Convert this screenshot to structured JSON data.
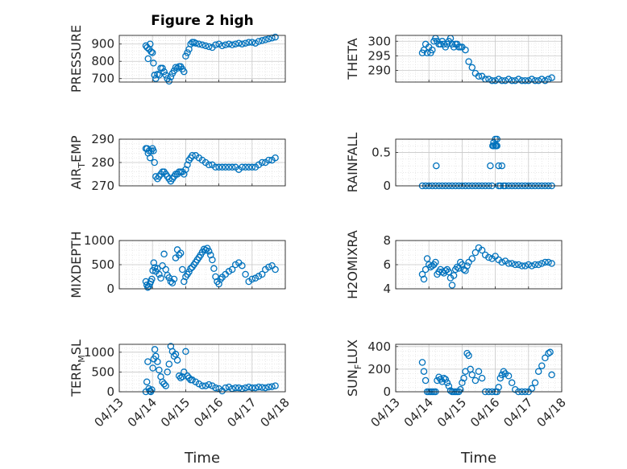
{
  "figure": {
    "title": "Figure 2 high",
    "xlabel": "Time",
    "marker_color": "#0072BD"
  },
  "chart_data": [
    {
      "type": "scatter",
      "ylabel": "PRESSURE",
      "ylim": [
        680,
        950
      ],
      "yticks": [
        700,
        800,
        900
      ],
      "xlim": [
        0,
        5
      ],
      "xticklabels": [
        "04/13",
        "04/14",
        "04/15",
        "04/16",
        "04/17",
        "04/18"
      ],
      "grid": true,
      "x": [
        0.8,
        0.84,
        0.87,
        0.9,
        0.93,
        0.96,
        1.0,
        1.03,
        1.06,
        1.1,
        1.15,
        1.2,
        1.25,
        1.3,
        1.35,
        1.4,
        1.45,
        1.5,
        1.55,
        1.6,
        1.65,
        1.7,
        1.75,
        1.8,
        1.85,
        1.9,
        1.95,
        2.0,
        2.05,
        2.1,
        2.15,
        2.2,
        2.25,
        2.3,
        2.4,
        2.5,
        2.6,
        2.7,
        2.8,
        2.9,
        3.0,
        3.1,
        3.2,
        3.3,
        3.4,
        3.5,
        3.6,
        3.7,
        3.8,
        3.9,
        4.0,
        4.1,
        4.2,
        4.3,
        4.4,
        4.5,
        4.6,
        4.7
      ],
      "y": [
        890,
        880,
        815,
        870,
        900,
        855,
        850,
        790,
        720,
        700,
        725,
        720,
        760,
        760,
        740,
        720,
        700,
        685,
        710,
        730,
        745,
        765,
        760,
        770,
        770,
        755,
        740,
        830,
        850,
        870,
        900,
        910,
        910,
        905,
        900,
        895,
        890,
        885,
        880,
        895,
        900,
        890,
        895,
        900,
        895,
        900,
        905,
        900,
        905,
        910,
        910,
        905,
        915,
        920,
        925,
        930,
        935,
        940
      ]
    },
    {
      "type": "scatter",
      "ylabel": "THETA",
      "ylim": [
        286,
        302
      ],
      "yticks": [
        290,
        295,
        300
      ],
      "xlim": [
        0,
        5
      ],
      "xticklabels": [
        "04/13",
        "04/14",
        "04/15",
        "04/16",
        "04/17",
        "04/18"
      ],
      "grid": true,
      "x": [
        0.8,
        0.85,
        0.9,
        0.95,
        1.0,
        1.05,
        1.1,
        1.15,
        1.2,
        1.25,
        1.3,
        1.35,
        1.4,
        1.45,
        1.5,
        1.55,
        1.6,
        1.65,
        1.7,
        1.75,
        1.8,
        1.85,
        1.9,
        1.95,
        2.0,
        2.1,
        2.2,
        2.3,
        2.4,
        2.5,
        2.6,
        2.7,
        2.8,
        2.9,
        3.0,
        3.1,
        3.2,
        3.3,
        3.4,
        3.5,
        3.6,
        3.7,
        3.8,
        3.9,
        4.0,
        4.1,
        4.2,
        4.3,
        4.4,
        4.5,
        4.6,
        4.7
      ],
      "y": [
        296,
        297,
        299,
        296,
        298,
        296,
        297,
        300,
        301,
        300,
        299,
        299,
        300,
        299,
        298,
        299,
        300,
        301,
        299,
        298,
        299,
        299,
        298,
        298,
        298,
        297,
        293,
        291,
        289,
        288,
        288,
        287,
        287,
        286.5,
        286.5,
        287,
        286.5,
        286.5,
        287,
        286.5,
        286.5,
        287,
        286.5,
        286.5,
        286.5,
        287,
        286.5,
        286.5,
        287,
        286.5,
        287,
        287.5
      ]
    },
    {
      "type": "scatter",
      "ylabel": "AIR_TEMP",
      "ylim": [
        270,
        290
      ],
      "yticks": [
        270,
        280,
        290
      ],
      "xlim": [
        0,
        5
      ],
      "xticklabels": [
        "04/13",
        "04/14",
        "04/15",
        "04/16",
        "04/17",
        "04/18"
      ],
      "grid": true,
      "x": [
        0.8,
        0.84,
        0.87,
        0.9,
        0.93,
        0.96,
        1.0,
        1.03,
        1.06,
        1.1,
        1.15,
        1.2,
        1.25,
        1.3,
        1.35,
        1.4,
        1.45,
        1.5,
        1.55,
        1.6,
        1.65,
        1.7,
        1.75,
        1.8,
        1.85,
        1.9,
        1.95,
        2.0,
        2.05,
        2.1,
        2.15,
        2.2,
        2.3,
        2.4,
        2.5,
        2.6,
        2.7,
        2.8,
        2.9,
        3.0,
        3.1,
        3.2,
        3.3,
        3.4,
        3.5,
        3.6,
        3.7,
        3.8,
        3.9,
        4.0,
        4.1,
        4.2,
        4.3,
        4.4,
        4.5,
        4.6,
        4.7
      ],
      "y": [
        286,
        286,
        284,
        285,
        282,
        285,
        286,
        285,
        280,
        274,
        273,
        274,
        275,
        276,
        276,
        275,
        274,
        273,
        272,
        273,
        274,
        275,
        275,
        276,
        276,
        276,
        275,
        277,
        279,
        281,
        282,
        283,
        283,
        282,
        281,
        280,
        279,
        279,
        278,
        278,
        278,
        278,
        278,
        278,
        278,
        277,
        278,
        278,
        278,
        278,
        278,
        279,
        280,
        280,
        281,
        281,
        282
      ]
    },
    {
      "type": "scatter",
      "ylabel": "RAINFALL",
      "ylim": [
        0,
        0.7
      ],
      "yticks": [
        0,
        0.5
      ],
      "xlim": [
        0,
        5
      ],
      "xticklabels": [
        "04/13",
        "04/14",
        "04/15",
        "04/16",
        "04/17",
        "04/18"
      ],
      "grid": true,
      "x": [
        0.8,
        0.9,
        1.0,
        1.1,
        1.2,
        1.22,
        1.3,
        1.4,
        1.5,
        1.6,
        1.7,
        1.8,
        1.9,
        2.0,
        2.1,
        2.2,
        2.3,
        2.4,
        2.5,
        2.6,
        2.7,
        2.8,
        2.85,
        2.9,
        2.92,
        2.95,
        3.0,
        3.02,
        3.05,
        3.1,
        3.15,
        3.2,
        3.25,
        3.3,
        3.4,
        3.5,
        3.6,
        3.7,
        3.8,
        3.9,
        4.0,
        4.1,
        4.2,
        4.3,
        4.4,
        4.5,
        4.6,
        4.7,
        2.95,
        3.0,
        3.02,
        3.05,
        3.1
      ],
      "y": [
        0,
        0,
        0,
        0,
        0,
        0.3,
        0,
        0,
        0,
        0,
        0,
        0,
        0,
        0,
        0,
        0,
        0,
        0,
        0,
        0,
        0,
        0,
        0.3,
        0,
        0.6,
        0.65,
        0.7,
        0.6,
        0.7,
        0.3,
        0,
        0.3,
        0,
        0,
        0,
        0,
        0,
        0,
        0,
        0,
        0,
        0,
        0,
        0,
        0,
        0,
        0,
        0,
        0.6,
        0.6,
        0.6,
        0.6,
        0
      ]
    },
    {
      "type": "scatter",
      "ylabel": "MIXDEPTH",
      "ylim": [
        0,
        1000
      ],
      "yticks": [
        0,
        500,
        1000
      ],
      "xlim": [
        0,
        5
      ],
      "xticklabels": [
        "04/13",
        "04/14",
        "04/15",
        "04/16",
        "04/17",
        "04/18"
      ],
      "grid": true,
      "x": [
        0.8,
        0.83,
        0.86,
        0.89,
        0.92,
        0.95,
        0.98,
        1.01,
        1.04,
        1.07,
        1.1,
        1.15,
        1.2,
        1.25,
        1.3,
        1.35,
        1.4,
        1.45,
        1.5,
        1.55,
        1.6,
        1.65,
        1.7,
        1.75,
        1.8,
        1.85,
        1.9,
        1.95,
        2.0,
        2.05,
        2.1,
        2.15,
        2.2,
        2.25,
        2.3,
        2.35,
        2.4,
        2.45,
        2.5,
        2.55,
        2.6,
        2.65,
        2.7,
        2.75,
        2.8,
        2.85,
        2.9,
        2.95,
        3.0,
        3.05,
        3.1,
        3.2,
        3.3,
        3.4,
        3.5,
        3.6,
        3.7,
        3.8,
        3.9,
        4.0,
        4.1,
        4.2,
        4.3,
        4.4,
        4.5,
        4.6,
        4.7
      ],
      "y": [
        150,
        80,
        30,
        50,
        100,
        150,
        200,
        380,
        540,
        440,
        360,
        420,
        300,
        220,
        480,
        720,
        400,
        280,
        230,
        150,
        120,
        200,
        640,
        810,
        700,
        740,
        400,
        150,
        250,
        300,
        350,
        420,
        450,
        500,
        550,
        600,
        650,
        700,
        760,
        820,
        800,
        840,
        780,
        700,
        600,
        420,
        250,
        150,
        100,
        200,
        240,
        300,
        360,
        400,
        500,
        540,
        480,
        300,
        150,
        200,
        220,
        260,
        300,
        400,
        450,
        480,
        400
      ]
    },
    {
      "type": "scatter",
      "ylabel": "H2OMIXRA",
      "ylim": [
        4,
        8
      ],
      "yticks": [
        4,
        6,
        8
      ],
      "xlim": [
        0,
        5
      ],
      "xticklabels": [
        "04/13",
        "04/14",
        "04/15",
        "04/16",
        "04/17",
        "04/18"
      ],
      "grid": true,
      "x": [
        0.8,
        0.85,
        0.9,
        0.95,
        1.0,
        1.05,
        1.1,
        1.15,
        1.2,
        1.25,
        1.3,
        1.35,
        1.4,
        1.45,
        1.5,
        1.55,
        1.6,
        1.65,
        1.7,
        1.75,
        1.8,
        1.85,
        1.9,
        1.95,
        2.0,
        2.05,
        2.1,
        2.15,
        2.2,
        2.3,
        2.4,
        2.5,
        2.6,
        2.7,
        2.8,
        2.9,
        3.0,
        3.1,
        3.2,
        3.3,
        3.4,
        3.5,
        3.6,
        3.7,
        3.8,
        3.9,
        4.0,
        4.1,
        4.2,
        4.3,
        4.4,
        4.5,
        4.6,
        4.7
      ],
      "y": [
        5.2,
        4.8,
        5.6,
        6.5,
        6.0,
        5.8,
        5.9,
        6.0,
        6.2,
        5.2,
        5.4,
        5.6,
        5.4,
        5.3,
        5.5,
        5.6,
        5.4,
        4.9,
        4.3,
        5.1,
        5.6,
        5.8,
        5.7,
        6.2,
        6.0,
        5.6,
        5.5,
        5.9,
        6.2,
        6.5,
        7.0,
        7.4,
        7.2,
        6.8,
        6.6,
        6.5,
        6.7,
        6.4,
        6.2,
        6.3,
        6.1,
        6.1,
        6.0,
        6.0,
        5.9,
        5.9,
        6.0,
        5.9,
        6.0,
        6.0,
        6.1,
        6.2,
        6.2,
        6.1
      ]
    },
    {
      "type": "scatter",
      "ylabel": "TERR_MSL",
      "ylim": [
        0,
        1200
      ],
      "yticks": [
        0,
        500,
        1000
      ],
      "xlim": [
        0,
        5
      ],
      "xticklabels": [
        "04/13",
        "04/14",
        "04/15",
        "04/16",
        "04/17",
        "04/18"
      ],
      "grid": true,
      "x": [
        0.8,
        0.83,
        0.86,
        0.89,
        0.92,
        0.95,
        0.98,
        1.01,
        1.04,
        1.07,
        1.1,
        1.15,
        1.2,
        1.25,
        1.3,
        1.35,
        1.4,
        1.45,
        1.5,
        1.55,
        1.6,
        1.65,
        1.7,
        1.75,
        1.8,
        1.85,
        1.9,
        1.95,
        2.0,
        2.05,
        2.1,
        2.15,
        2.2,
        2.3,
        2.4,
        2.5,
        2.6,
        2.7,
        2.8,
        2.9,
        3.0,
        3.1,
        3.2,
        3.3,
        3.4,
        3.5,
        3.6,
        3.7,
        3.8,
        3.9,
        4.0,
        4.1,
        4.2,
        4.3,
        4.4,
        4.5,
        4.6,
        4.7
      ],
      "y": [
        0,
        250,
        760,
        80,
        20,
        0,
        50,
        600,
        830,
        1070,
        900,
        760,
        550,
        380,
        250,
        200,
        150,
        500,
        700,
        1150,
        1020,
        900,
        950,
        800,
        400,
        350,
        380,
        500,
        1020,
        400,
        350,
        300,
        300,
        250,
        200,
        150,
        150,
        180,
        150,
        100,
        80,
        20,
        100,
        120,
        80,
        100,
        100,
        80,
        100,
        120,
        100,
        100,
        120,
        110,
        100,
        120,
        130,
        150
      ]
    },
    {
      "type": "scatter",
      "ylabel": "SUN_FLUX",
      "ylim": [
        0,
        420
      ],
      "yticks": [
        0,
        200,
        400
      ],
      "xlim": [
        0,
        5
      ],
      "xticklabels": [
        "04/13",
        "04/14",
        "04/15",
        "04/16",
        "04/17",
        "04/18"
      ],
      "grid": true,
      "x": [
        0.8,
        0.85,
        0.9,
        0.95,
        1.0,
        1.05,
        1.1,
        1.15,
        1.2,
        1.25,
        1.3,
        1.35,
        1.4,
        1.45,
        1.5,
        1.55,
        1.6,
        1.65,
        1.7,
        1.75,
        1.8,
        1.85,
        1.9,
        1.95,
        2.0,
        2.05,
        2.1,
        2.15,
        2.2,
        2.25,
        2.3,
        2.4,
        2.5,
        2.6,
        2.7,
        2.8,
        2.9,
        3.0,
        3.05,
        3.1,
        3.15,
        3.2,
        3.25,
        3.3,
        3.4,
        3.5,
        3.6,
        3.7,
        3.8,
        3.9,
        4.0,
        4.1,
        4.2,
        4.3,
        4.4,
        4.5,
        4.6,
        4.65,
        4.7
      ],
      "y": [
        260,
        180,
        100,
        0,
        0,
        0,
        0,
        0,
        0,
        100,
        130,
        110,
        90,
        120,
        110,
        80,
        50,
        10,
        0,
        0,
        0,
        0,
        0,
        20,
        80,
        120,
        180,
        340,
        320,
        200,
        150,
        100,
        180,
        120,
        0,
        0,
        0,
        0,
        0,
        40,
        120,
        150,
        180,
        160,
        140,
        80,
        20,
        0,
        0,
        0,
        0,
        30,
        80,
        180,
        230,
        300,
        340,
        350,
        150
      ]
    }
  ]
}
